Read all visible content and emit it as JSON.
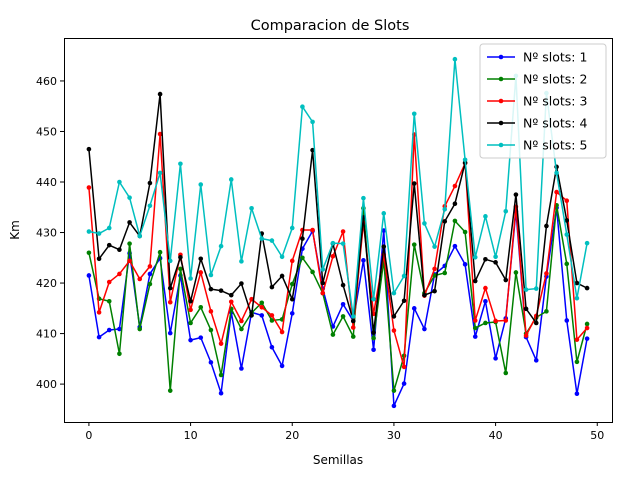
{
  "chart_data": {
    "type": "line",
    "title": "Comparacion de Slots",
    "xlabel": "Semillas",
    "ylabel": "Km",
    "xlim": [
      -2.45,
      51.45
    ],
    "ylim": [
      392.5,
      468.5
    ],
    "xticks": [
      0,
      10,
      20,
      30,
      40,
      50
    ],
    "yticks": [
      400,
      410,
      420,
      430,
      440,
      450,
      460
    ],
    "grid": false,
    "legend_position": "top-right",
    "x": [
      0,
      1,
      2,
      3,
      4,
      5,
      6,
      7,
      8,
      9,
      10,
      11,
      12,
      13,
      14,
      15,
      16,
      17,
      18,
      19,
      20,
      21,
      22,
      23,
      24,
      25,
      26,
      27,
      28,
      29,
      30,
      31,
      32,
      33,
      34,
      35,
      36,
      37,
      38,
      39,
      40,
      41,
      42,
      43,
      44,
      45,
      46,
      47,
      48,
      49
    ],
    "series": [
      {
        "name": "Nº slots: 1",
        "color": "#0000ff",
        "values": [
          421.5,
          409.3,
          410.7,
          410.9,
          425.9,
          411.3,
          421.8,
          424.9,
          410.1,
          421.5,
          408.7,
          409.2,
          404.3,
          398.2,
          414.2,
          403.1,
          414.2,
          413.6,
          407.3,
          403.6,
          414.0,
          426.8,
          430.3,
          418.9,
          411.4,
          415.8,
          412.5,
          424.5,
          406.8,
          430.4,
          395.7,
          400.1,
          415.0,
          410.9,
          421.7,
          423.4,
          427.3,
          423.7,
          409.4,
          416.4,
          405.1,
          413.0,
          434.2,
          409.3,
          404.7,
          421.3,
          434.9,
          412.6,
          398.1,
          409.0
        ]
      },
      {
        "name": "Nº slots: 2",
        "color": "#008000",
        "values": [
          426.0,
          416.9,
          416.4,
          406.0,
          427.8,
          410.9,
          419.8,
          426.1,
          398.7,
          422.8,
          412.1,
          415.2,
          410.7,
          401.8,
          414.9,
          410.9,
          414.1,
          416.1,
          412.6,
          412.8,
          419.8,
          425.0,
          422.2,
          418.0,
          409.8,
          413.4,
          409.4,
          434.8,
          409.1,
          424.5,
          398.7,
          405.6,
          427.6,
          418.0,
          421.5,
          422.0,
          432.3,
          430.1,
          411.1,
          412.1,
          412.3,
          402.2,
          422.1,
          410.0,
          413.2,
          414.4,
          435.4,
          423.8,
          404.4,
          411.9
        ]
      },
      {
        "name": "Nº slots: 3",
        "color": "#ff0000",
        "values": [
          438.9,
          414.2,
          420.2,
          421.8,
          424.4,
          420.8,
          423.3,
          449.5,
          416.2,
          425.6,
          414.7,
          422.1,
          414.4,
          408.0,
          416.3,
          412.5,
          416.8,
          415.2,
          413.6,
          410.3,
          424.4,
          430.5,
          430.5,
          418.0,
          425.3,
          430.2,
          411.2,
          431.9,
          413.9,
          425.6,
          410.6,
          403.4,
          449.4,
          417.5,
          422.8,
          435.2,
          439.2,
          443.7,
          412.6,
          419.0,
          412.5,
          412.6,
          435.1,
          409.6,
          413.5,
          421.9,
          438.0,
          436.3,
          408.8,
          411.1
        ]
      },
      {
        "name": "Nº slots: 4",
        "color": "#000000",
        "values": [
          446.5,
          424.8,
          427.5,
          426.6,
          432.0,
          429.3,
          439.8,
          457.4,
          419.0,
          425.1,
          416.4,
          424.8,
          418.8,
          418.5,
          417.6,
          419.9,
          413.6,
          429.8,
          419.2,
          421.4,
          416.8,
          428.8,
          446.3,
          420.0,
          427.8,
          419.6,
          412.5,
          433.0,
          410.2,
          427.2,
          413.4,
          416.5,
          439.7,
          417.6,
          418.4,
          432.2,
          435.7,
          443.8,
          420.4,
          424.7,
          424.1,
          420.6,
          437.5,
          414.9,
          412.1,
          431.3,
          443.0,
          432.4,
          420.0,
          419.0
        ]
      },
      {
        "name": "Nº slots: 5",
        "color": "#00bfbf",
        "values": [
          430.2,
          429.8,
          430.9,
          440.0,
          436.9,
          429.3,
          435.3,
          441.8,
          424.4,
          443.6,
          420.9,
          439.5,
          421.6,
          427.3,
          440.5,
          424.3,
          434.8,
          428.8,
          428.4,
          425.2,
          430.9,
          454.9,
          451.9,
          422.7,
          427.9,
          427.8,
          413.4,
          436.8,
          416.8,
          433.8,
          418.0,
          421.4,
          453.5,
          431.8,
          427.2,
          434.6,
          464.3,
          444.4,
          425.1,
          433.2,
          425.2,
          434.2,
          461.0,
          418.7,
          418.9,
          457.6,
          441.8,
          429.6,
          417.0,
          427.9
        ]
      }
    ]
  }
}
